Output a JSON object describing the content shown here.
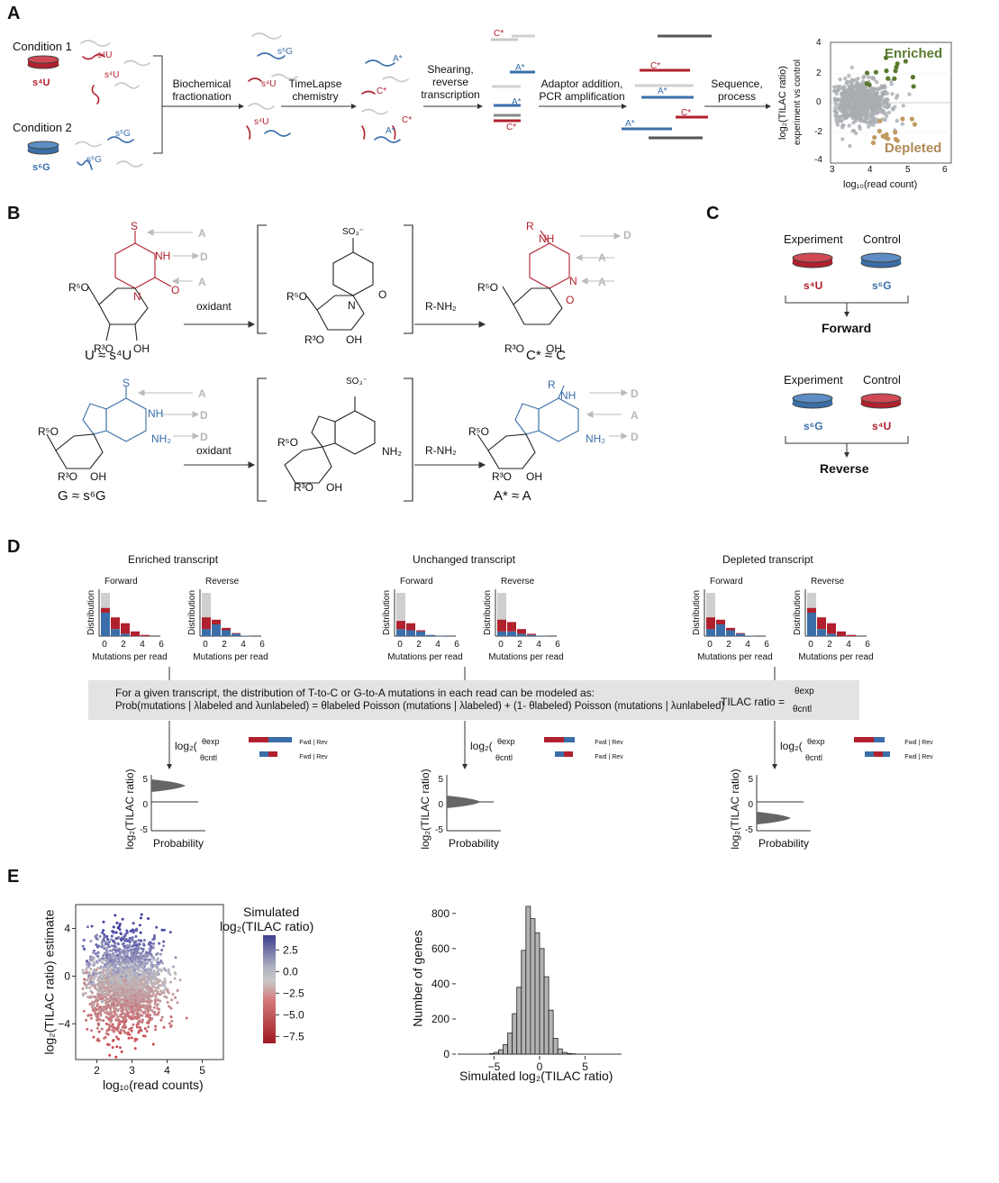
{
  "panels": {
    "A": {
      "letter": "A",
      "condition1": "Condition 1",
      "condition2": "Condition 2",
      "s4U": "s⁴U",
      "s6G": "s⁶G",
      "step1": "Biochemical\nfractionation",
      "step2": "TimeLapse\nchemistry",
      "step3": "Shearing,\nreverse\ntranscription",
      "step4": "Adaptor addition,\nPCR amplification",
      "step5": "Sequence,\nprocess",
      "c_star": "C*",
      "a_star": "A*",
      "scatter": {
        "ylabel_line1": "log₂(TILAC ratio)",
        "ylabel_line2": "experiment vs control",
        "xlabel": "log₁₀(read count)",
        "enriched": "Enriched",
        "depleted": "Depleted",
        "yticks": [
          "4",
          "2",
          "0",
          "-2",
          "-4"
        ],
        "xticks": [
          "3",
          "4",
          "5",
          "6"
        ]
      }
    },
    "B": {
      "letter": "B",
      "oxidant": "oxidant",
      "rnh2": "R-NH₂",
      "u_eq": "U ≈ s⁴U",
      "c_eq": "C* ≈ C",
      "g_eq": "G ≈ s⁶G",
      "a_eq": "A* ≈ A",
      "labels_A": "A",
      "labels_D": "D",
      "so3": "SO₃⁻",
      "r5o": "R⁵O",
      "r3o": "R³O",
      "oh": "OH",
      "s": "S",
      "nh": "NH",
      "nh2": "NH₂",
      "n": "N",
      "o": "O",
      "r": "R"
    },
    "C": {
      "letter": "C",
      "experiment": "Experiment",
      "control": "Control",
      "forward": "Forward",
      "reverse": "Reverse",
      "s4U": "s⁴U",
      "s6G": "s⁶G"
    },
    "D": {
      "letter": "D",
      "titles": [
        "Enriched transcript",
        "Unchanged transcript",
        "Depleted transcript"
      ],
      "forward": "Forward",
      "reverse": "Reverse",
      "distribution": "Distribution",
      "mutations_per_read": "Mutations per read",
      "xticks": [
        "0",
        "2",
        "4",
        "6"
      ],
      "model_line1": "For a given transcript, the distribution of T-to-C or G-to-A mutations in each read can be modeled as:",
      "model_line2": "Prob(mutations  | λlabeled and λunlabeled) = θlabeled  Poisson (mutations | λlabeled) + (1- θlabeled) Poisson (mutations | λunlabeled)",
      "tilac_ratio": "TILAC ratio =",
      "theta_exp": "θexp",
      "theta_cntl": "θcntl",
      "fwd_rev": "Fwd | Rev",
      "log2_tilac": "log₂(TILAC ratio)",
      "probability": "Probability"
    },
    "E": {
      "letter": "E",
      "scatter": {
        "ylabel": "log₂(TILAC ratio) estimate",
        "xlabel": "log₁₀(read counts)",
        "xticks": [
          "2",
          "3",
          "4",
          "5"
        ],
        "yticks": [
          "−4",
          "0",
          "4"
        ],
        "legend_title_line1": "Simulated",
        "legend_title_line2": "log₂(TILAC ratio)",
        "legend_ticks": [
          "2.5",
          "0.0",
          "−2.5",
          "−5.0",
          "−7.5"
        ]
      },
      "histogram": {
        "ylabel": "Number of genes",
        "xlabel": "Simulated log₂(TILAC ratio)",
        "xticks": [
          "−5",
          "0",
          "5"
        ],
        "yticks": [
          "800",
          "600",
          "400",
          "200",
          "0"
        ]
      }
    }
  },
  "chart_data": [
    {
      "type": "scatter",
      "xlabel": "log₁₀(read count)",
      "ylabel": "log₂(TILAC ratio) experiment vs control",
      "xlim": [
        2.8,
        6.2
      ],
      "ylim": [
        -4.5,
        4.5
      ],
      "annotations": [
        "Enriched",
        "Depleted"
      ]
    },
    {
      "type": "scatter",
      "xlabel": "log₁₀(read counts)",
      "ylabel": "log₂(TILAC ratio) estimate",
      "xlim": [
        1.4,
        5.6
      ],
      "ylim": [
        -7,
        6
      ],
      "colorbar": {
        "title": "Simulated log₂(TILAC ratio)",
        "ticks": [
          2.5,
          0.0,
          -2.5,
          -5.0,
          -7.5
        ]
      }
    },
    {
      "type": "bar",
      "title": "",
      "xlabel": "Simulated log₂(TILAC ratio)",
      "ylabel": "Number of genes",
      "xlim": [
        -9,
        9
      ],
      "ylim": [
        0,
        850
      ],
      "bin_edges": [
        -5.5,
        -5,
        -4.5,
        -4,
        -3.5,
        -3,
        -2.5,
        -2,
        -1.5,
        -1,
        -0.5,
        0,
        0.5,
        1,
        1.5,
        2,
        2.5,
        3,
        3.5,
        4
      ],
      "values": [
        3,
        10,
        25,
        55,
        120,
        230,
        380,
        590,
        840,
        770,
        690,
        600,
        440,
        250,
        90,
        30,
        10,
        4,
        2
      ]
    }
  ]
}
